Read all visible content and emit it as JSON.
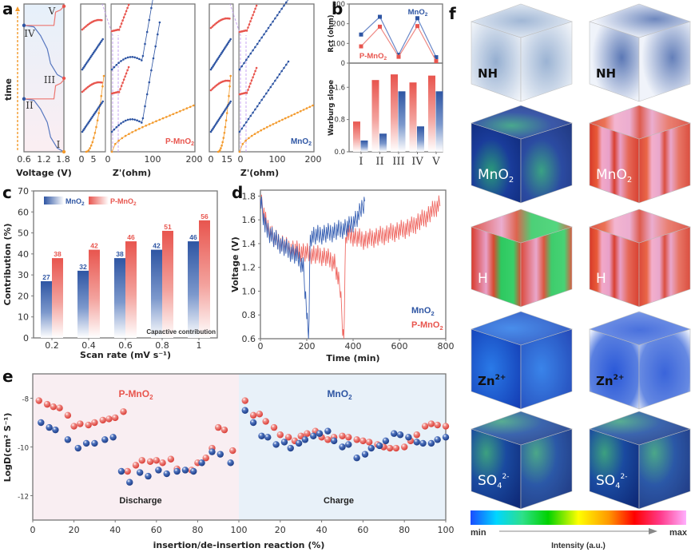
{
  "figure": {
    "panel_labels": [
      "a",
      "b",
      "c",
      "d",
      "e",
      "f"
    ],
    "colors": {
      "mno2": "#2e55a3",
      "pmno2": "#e8554e",
      "bare": "#f39a2c",
      "guide": "#c7a4f0"
    }
  },
  "chart_data": [
    {
      "id": "a",
      "type": "line",
      "title": "",
      "subplots": [
        {
          "name": "voltage-profile",
          "xlabel": "Voltage (V)",
          "ylabel": "time",
          "xticks": [
            "0.6",
            "1.2",
            "1.8"
          ],
          "xlim": [
            0.6,
            1.8
          ],
          "states": [
            "I",
            "II",
            "III",
            "IV",
            "V"
          ],
          "series": [
            {
              "name": "discharge-1",
              "color": "blue",
              "points": [
                [
                  1.8,
                  0
                ],
                [
                  1.6,
                  0.05
                ],
                [
                  1.4,
                  0.2
                ],
                [
                  1.35,
                  0.3
                ],
                [
                  1.3,
                  0.4
                ],
                [
                  1.1,
                  0.58
                ],
                [
                  0.9,
                  0.7
                ],
                [
                  0.6,
                  0.72
                ]
              ]
            },
            {
              "name": "charge-1",
              "color": "red",
              "points": [
                [
                  0.6,
                  0.72
                ],
                [
                  1.5,
                  0.72
                ],
                [
                  1.55,
                  0.9
                ],
                [
                  1.7,
                  0.93
                ],
                [
                  1.8,
                  0.98
                ]
              ]
            }
          ]
        },
        {
          "name": "eis-P-MnO2",
          "label": "P-MnO2",
          "xlabel": "Z'(ohm)",
          "xticks_zoom": [
            "0",
            "5",
            "10"
          ],
          "xticks_full": [
            "0",
            "100",
            "200"
          ]
        },
        {
          "name": "eis-MnO2",
          "label": "MnO2",
          "xlabel": "Z'(ohm)",
          "xticks_zoom": [
            "0",
            "15"
          ],
          "xticks_full": [
            "0",
            "100",
            "200"
          ]
        }
      ]
    },
    {
      "id": "b",
      "type": "line+bar",
      "categories": [
        "I",
        "II",
        "III",
        "IV",
        "V"
      ],
      "top": {
        "ylabel": "Rct (ohm)",
        "ylim": [
          0,
          300
        ],
        "yticks": [
          "0",
          "100",
          "200",
          "300"
        ],
        "series": [
          {
            "name": "MnO2",
            "values": [
              145,
              235,
              42,
              228,
              30
            ]
          },
          {
            "name": "P-MnO2",
            "values": [
              85,
              185,
              32,
              188,
              10
            ]
          }
        ]
      },
      "bottom": {
        "ylabel": "Warburg slope",
        "ylim": [
          0,
          2.2
        ],
        "yticks": [
          "0.0",
          "0.8",
          "1.6"
        ],
        "series": [
          {
            "name": "P-MnO2",
            "values": [
              0.75,
              1.78,
              1.92,
              1.72,
              1.89
            ]
          },
          {
            "name": "MnO2",
            "values": [
              0.28,
              0.45,
              1.5,
              0.63,
              1.5
            ]
          }
        ]
      }
    },
    {
      "id": "c",
      "type": "bar",
      "title": "",
      "annotation": "Capactive contribution",
      "xlabel": "Scan rate (mV s⁻¹)",
      "ylabel": "Contribution (%)",
      "ylim": [
        0,
        70
      ],
      "yticks": [
        "0",
        "10",
        "20",
        "30",
        "40",
        "50",
        "60",
        "70"
      ],
      "categories": [
        "0.2",
        "0.4",
        "0.6",
        "0.8",
        "1"
      ],
      "series": [
        {
          "name": "MnO2",
          "values": [
            27,
            32,
            38,
            42,
            46
          ]
        },
        {
          "name": "P-MnO2",
          "values": [
            38,
            42,
            46,
            51,
            56
          ]
        }
      ],
      "legend": "top-left"
    },
    {
      "id": "d",
      "type": "line",
      "xlabel": "Time (min)",
      "ylabel": "Voltage (V)",
      "xlim": [
        0,
        800
      ],
      "ylim": [
        0.6,
        1.85
      ],
      "xticks": [
        "0",
        "200",
        "400",
        "600",
        "800"
      ],
      "yticks": [
        "0.6",
        "0.8",
        "1.0",
        "1.2",
        "1.4",
        "1.6",
        "1.8"
      ],
      "legend": "bottom-right",
      "series": [
        {
          "name": "MnO2",
          "envelope": [
            [
              0,
              1.82
            ],
            [
              20,
              1.58
            ],
            [
              60,
              1.48
            ],
            [
              110,
              1.4
            ],
            [
              160,
              1.33
            ],
            [
              185,
              1.25
            ],
            [
              200,
              0.85
            ],
            [
              208,
              0.6
            ],
            [
              215,
              1.5
            ],
            [
              300,
              1.53
            ],
            [
              380,
              1.58
            ],
            [
              420,
              1.66
            ],
            [
              450,
              1.8
            ]
          ]
        },
        {
          "name": "P-MnO2",
          "envelope": [
            [
              0,
              1.82
            ],
            [
              25,
              1.6
            ],
            [
              60,
              1.48
            ],
            [
              120,
              1.4
            ],
            [
              200,
              1.36
            ],
            [
              280,
              1.33
            ],
            [
              320,
              1.28
            ],
            [
              345,
              1.05
            ],
            [
              360,
              0.6
            ],
            [
              368,
              1.52
            ],
            [
              450,
              1.47
            ],
            [
              550,
              1.52
            ],
            [
              650,
              1.58
            ],
            [
              720,
              1.67
            ],
            [
              775,
              1.78
            ]
          ]
        }
      ]
    },
    {
      "id": "e",
      "type": "scatter",
      "ylabel": "LogD(cm² S⁻¹)",
      "xlabel": "insertion/de-insertion reaction (%)",
      "ylim": [
        -13,
        -7
      ],
      "yticks": [
        "-8",
        "-10",
        "-12"
      ],
      "regions": [
        {
          "name": "Discharge",
          "label": "P-MnO2",
          "color": "#f9eef2",
          "xticks": [
            "0",
            "20",
            "40",
            "60",
            "80",
            "100"
          ]
        },
        {
          "name": "Charge",
          "label": "MnO2",
          "color": "#e8f1f9",
          "xticks": [
            "20",
            "40",
            "60",
            "80",
            "100"
          ]
        }
      ],
      "series": [
        {
          "name": "P-MnO2",
          "discharge": [
            [
              3,
              -8.1
            ],
            [
              7,
              -8.25
            ],
            [
              10,
              -8.35
            ],
            [
              13,
              -8.4
            ],
            [
              17,
              -8.7
            ],
            [
              20,
              -9.15
            ],
            [
              23,
              -9.05
            ],
            [
              27,
              -9.1
            ],
            [
              30,
              -9.0
            ],
            [
              34,
              -8.9
            ],
            [
              37,
              -8.85
            ],
            [
              40,
              -8.8
            ],
            [
              44,
              -8.55
            ],
            [
              46,
              -11.0
            ],
            [
              50,
              -10.75
            ],
            [
              53,
              -10.55
            ],
            [
              57,
              -10.6
            ],
            [
              60,
              -10.55
            ],
            [
              63,
              -10.65
            ],
            [
              67,
              -10.5
            ],
            [
              70,
              -10.9
            ],
            [
              77,
              -10.95
            ],
            [
              80,
              -10.65
            ],
            [
              84,
              -10.45
            ],
            [
              87,
              -10.05
            ],
            [
              90,
              -9.2
            ],
            [
              93,
              -9.3
            ],
            [
              97,
              -10.15
            ]
          ],
          "charge": [
            [
              3,
              -8.1
            ],
            [
              7,
              -8.7
            ],
            [
              10,
              -8.65
            ],
            [
              13,
              -8.95
            ],
            [
              17,
              -9.2
            ],
            [
              20,
              -9.5
            ],
            [
              24,
              -9.6
            ],
            [
              27,
              -9.75
            ],
            [
              30,
              -9.55
            ],
            [
              33,
              -9.45
            ],
            [
              37,
              -9.35
            ],
            [
              40,
              -9.6
            ],
            [
              43,
              -9.7
            ],
            [
              46,
              -9.6
            ],
            [
              50,
              -9.55
            ],
            [
              53,
              -9.6
            ],
            [
              57,
              -9.7
            ],
            [
              60,
              -9.75
            ],
            [
              63,
              -9.8
            ],
            [
              67,
              -9.9
            ],
            [
              70,
              -10.0
            ],
            [
              73,
              -10.05
            ],
            [
              76,
              -10.05
            ],
            [
              80,
              -10.0
            ],
            [
              83,
              -9.75
            ],
            [
              86,
              -9.5
            ],
            [
              90,
              -9.15
            ],
            [
              93,
              -9.05
            ],
            [
              96,
              -9.1
            ],
            [
              100,
              -9.15
            ]
          ]
        },
        {
          "name": "MnO2",
          "discharge": [
            [
              4,
              -9.0
            ],
            [
              8,
              -9.2
            ],
            [
              11,
              -9.3
            ],
            [
              17,
              -9.7
            ],
            [
              22,
              -10.05
            ],
            [
              26,
              -9.85
            ],
            [
              30,
              -9.85
            ],
            [
              35,
              -9.7
            ],
            [
              39,
              -9.6
            ],
            [
              43,
              -11.0
            ],
            [
              47,
              -11.45
            ],
            [
              52,
              -11.05
            ],
            [
              56,
              -11.2
            ],
            [
              61,
              -10.95
            ],
            [
              65,
              -11.1
            ],
            [
              70,
              -11.0
            ],
            [
              74,
              -10.95
            ],
            [
              78,
              -11.0
            ],
            [
              82,
              -10.65
            ],
            [
              87,
              -10.2
            ],
            [
              91,
              -10.3
            ],
            [
              96,
              -10.65
            ]
          ],
          "charge": [
            [
              3,
              -8.5
            ],
            [
              7,
              -9.0
            ],
            [
              11,
              -9.55
            ],
            [
              14,
              -9.6
            ],
            [
              18,
              -9.9
            ],
            [
              22,
              -9.8
            ],
            [
              25,
              -10.05
            ],
            [
              29,
              -9.85
            ],
            [
              32,
              -9.7
            ],
            [
              36,
              -9.55
            ],
            [
              39,
              -9.45
            ],
            [
              43,
              -9.35
            ],
            [
              46,
              -9.75
            ],
            [
              50,
              -10.0
            ],
            [
              53,
              -9.9
            ],
            [
              57,
              -10.45
            ],
            [
              61,
              -10.3
            ],
            [
              64,
              -10.05
            ],
            [
              68,
              -9.95
            ],
            [
              71,
              -9.75
            ],
            [
              75,
              -9.45
            ],
            [
              78,
              -9.5
            ],
            [
              82,
              -9.6
            ],
            [
              86,
              -9.8
            ],
            [
              89,
              -9.85
            ],
            [
              93,
              -9.85
            ],
            [
              96,
              -9.7
            ],
            [
              100,
              -9.6
            ]
          ]
        }
      ],
      "annotations": [
        "Discharge",
        "Charge"
      ]
    }
  ],
  "panel_f": {
    "rows": [
      {
        "label": "NH",
        "sup": "",
        "sub": ""
      },
      {
        "label": "MnO",
        "sup": "",
        "sub": "2"
      },
      {
        "label": "H",
        "sup": "",
        "sub": ""
      },
      {
        "label": "Zn",
        "sup": "2+",
        "sub": ""
      },
      {
        "label": "SO",
        "sup": "2-",
        "sub": "4"
      }
    ],
    "colorbar": {
      "min_label": "min",
      "max_label": "max",
      "title": "Intensity (a.u.)"
    }
  },
  "labels": {
    "mno2": "MnO",
    "pmno2": "P-MnO",
    "sub2": "2",
    "discharge": "Discharge",
    "charge": "Charge",
    "time": "time"
  }
}
